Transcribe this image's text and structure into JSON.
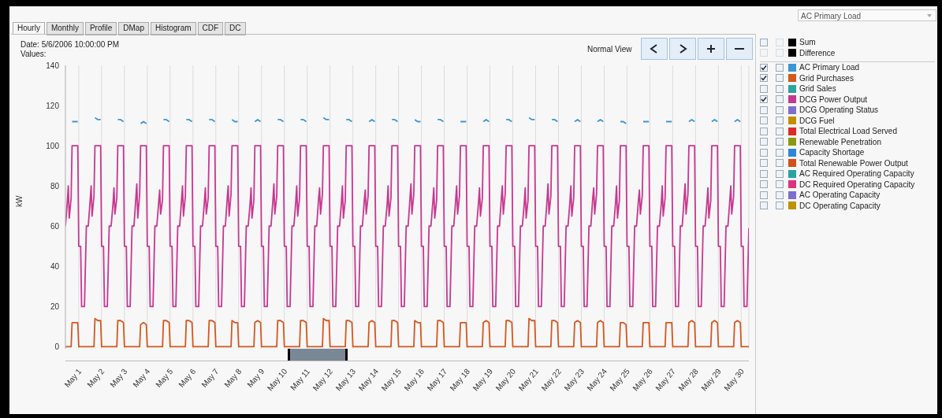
{
  "chart_data": {
    "type": "line",
    "ylabel": "kW",
    "annotations": [
      "Date:  5/6/2006 10:00:00 PM",
      "Values:",
      "Normal View",
      "AC Primary Load",
      "Hourly",
      "Monthly",
      "Profile",
      "DMap",
      "Histogram",
      "CDF",
      "DC",
      "Sum",
      "Difference",
      "Grid Sales",
      "DCG Operating Status",
      "DCG Fuel",
      "Total Electrical Load Served",
      "Renewable Penetration",
      "Capacity Shortage",
      "Total Renewable Power Output",
      "AC Required Operating Capacity",
      "DC Required Operating Capacity",
      "AC Operating Capacity",
      "DC Operating Capacity"
    ],
    "xlim": [
      "2006-04-30T10:00",
      "2006-05-30T08:00"
    ],
    "ylim": [
      -1,
      140
    ],
    "yticks": [
      0,
      20,
      40,
      60,
      80,
      100,
      120,
      140
    ],
    "xticks": [
      {
        "value": "2006-05-01",
        "label": "May 1"
      },
      {
        "value": "2006-05-02",
        "label": "May 2"
      },
      {
        "value": "2006-05-03",
        "label": "May 3"
      },
      {
        "value": "2006-05-04",
        "label": "May 4"
      },
      {
        "value": "2006-05-05",
        "label": "May 5"
      },
      {
        "value": "2006-05-06",
        "label": "May 6"
      },
      {
        "value": "2006-05-07",
        "label": "May 7"
      },
      {
        "value": "2006-05-08",
        "label": "May 8"
      },
      {
        "value": "2006-05-09",
        "label": "May 9"
      },
      {
        "value": "2006-05-10",
        "label": "May 10"
      },
      {
        "value": "2006-05-11",
        "label": "May 11"
      },
      {
        "value": "2006-05-12",
        "label": "May 12"
      },
      {
        "value": "2006-05-13",
        "label": "May 13"
      },
      {
        "value": "2006-05-14",
        "label": "May 14"
      },
      {
        "value": "2006-05-15",
        "label": "May 15"
      },
      {
        "value": "2006-05-16",
        "label": "May 16"
      },
      {
        "value": "2006-05-17",
        "label": "May 17"
      },
      {
        "value": "2006-05-18",
        "label": "May 18"
      },
      {
        "value": "2006-05-19",
        "label": "May 19"
      },
      {
        "value": "2006-05-20",
        "label": "May 20"
      },
      {
        "value": "2006-05-21",
        "label": "May 21"
      },
      {
        "value": "2006-05-22",
        "label": "May 22"
      },
      {
        "value": "2006-05-23",
        "label": "May 23"
      },
      {
        "value": "2006-05-24",
        "label": "May 24"
      },
      {
        "value": "2006-05-25",
        "label": "May 25"
      },
      {
        "value": "2006-05-26",
        "label": "May 26"
      },
      {
        "value": "2006-05-27",
        "label": "May 27"
      },
      {
        "value": "2006-05-28",
        "label": "May 28"
      },
      {
        "value": "2006-05-29",
        "label": "May 29"
      },
      {
        "value": "2006-05-30",
        "label": "May 30"
      }
    ],
    "grid": "x",
    "legend": "right",
    "marker": "none",
    "line_style": "solid",
    "x": [
      "2006-04-30T10:00",
      "2006-04-30T12:00",
      "2006-04-30T13:00",
      "2006-04-30T14:00",
      "2006-04-30T16:00",
      "2006-04-30T17:00",
      "2006-04-30T20:00",
      "2006-04-30T23:00",
      "2006-05-01T00:00",
      "2006-05-01T02:00",
      "2006-05-01T03:00",
      "2006-05-01T06:00",
      "2006-05-01T08:00",
      "2006-05-01T10:00",
      "2006-05-01T12:00",
      "2006-05-01T13:00",
      "2006-05-01T14:00",
      "2006-05-01T16:00",
      "2006-05-01T17:00",
      "2006-05-01T20:00",
      "2006-05-01T23:00",
      "2006-05-02T00:00",
      "2006-05-02T02:00",
      "2006-05-02T03:00",
      "2006-05-02T06:00",
      "2006-05-02T08:00",
      "2006-05-02T10:00",
      "2006-05-02T12:00",
      "2006-05-02T13:00",
      "2006-05-02T14:00",
      "2006-05-02T16:00",
      "2006-05-02T17:00",
      "2006-05-02T20:00",
      "2006-05-02T23:00",
      "2006-05-03T00:00",
      "2006-05-03T02:00",
      "2006-05-03T03:00",
      "2006-05-03T06:00",
      "2006-05-03T08:00",
      "2006-05-03T10:00",
      "2006-05-03T12:00",
      "2006-05-03T13:00",
      "2006-05-03T14:00",
      "2006-05-03T16:00",
      "2006-05-03T17:00",
      "2006-05-03T20:00",
      "2006-05-03T23:00",
      "2006-05-04T00:00",
      "2006-05-04T02:00",
      "2006-05-04T03:00",
      "2006-05-04T06:00",
      "2006-05-04T08:00",
      "2006-05-04T10:00",
      "2006-05-04T12:00",
      "2006-05-04T13:00",
      "2006-05-04T14:00",
      "2006-05-04T16:00",
      "2006-05-04T17:00",
      "2006-05-04T20:00",
      "2006-05-04T23:00",
      "2006-05-05T00:00",
      "2006-05-05T02:00",
      "2006-05-05T03:00",
      "2006-05-05T06:00",
      "2006-05-05T08:00",
      "2006-05-05T10:00",
      "2006-05-05T12:00",
      "2006-05-05T13:00",
      "2006-05-05T14:00",
      "2006-05-05T16:00",
      "2006-05-05T17:00",
      "2006-05-05T20:00",
      "2006-05-05T23:00",
      "2006-05-06T00:00",
      "2006-05-06T02:00",
      "2006-05-06T03:00",
      "2006-05-06T06:00",
      "2006-05-06T08:00",
      "2006-05-06T10:00",
      "2006-05-06T12:00",
      "2006-05-06T13:00",
      "2006-05-06T14:00",
      "2006-05-06T16:00",
      "2006-05-06T17:00",
      "2006-05-06T20:00",
      "2006-05-06T23:00",
      "2006-05-07T00:00",
      "2006-05-07T02:00",
      "2006-05-07T03:00",
      "2006-05-07T06:00",
      "2006-05-07T08:00",
      "2006-05-07T10:00",
      "2006-05-07T12:00",
      "2006-05-07T13:00",
      "2006-05-07T14:00",
      "2006-05-07T16:00",
      "2006-05-07T17:00",
      "2006-05-07T20:00",
      "2006-05-07T23:00",
      "2006-05-08T00:00",
      "2006-05-08T02:00",
      "2006-05-08T03:00",
      "2006-05-08T06:00",
      "2006-05-08T08:00",
      "2006-05-08T10:00",
      "2006-05-08T12:00",
      "2006-05-08T13:00",
      "2006-05-08T14:00",
      "2006-05-08T16:00",
      "2006-05-08T17:00",
      "2006-05-08T20:00",
      "2006-05-08T23:00",
      "2006-05-09T00:00",
      "2006-05-09T02:00",
      "2006-05-09T03:00",
      "2006-05-09T06:00",
      "2006-05-09T08:00",
      "2006-05-09T10:00",
      "2006-05-09T12:00",
      "2006-05-09T13:00",
      "2006-05-09T14:00",
      "2006-05-09T16:00",
      "2006-05-09T17:00",
      "2006-05-09T20:00",
      "2006-05-09T23:00",
      "2006-05-10T00:00",
      "2006-05-10T02:00",
      "2006-05-10T03:00",
      "2006-05-10T06:00",
      "2006-05-10T08:00",
      "2006-05-10T10:00",
      "2006-05-10T12:00",
      "2006-05-10T13:00",
      "2006-05-10T14:00",
      "2006-05-10T16:00",
      "2006-05-10T17:00",
      "2006-05-10T20:00",
      "2006-05-10T23:00",
      "2006-05-11T00:00",
      "2006-05-11T02:00",
      "2006-05-11T03:00",
      "2006-05-11T06:00",
      "2006-05-11T08:00",
      "2006-05-11T10:00",
      "2006-05-11T12:00",
      "2006-05-11T13:00",
      "2006-05-11T14:00",
      "2006-05-11T16:00",
      "2006-05-11T17:00",
      "2006-05-11T20:00",
      "2006-05-11T23:00",
      "2006-05-12T00:00",
      "2006-05-12T02:00",
      "2006-05-12T03:00",
      "2006-05-12T06:00",
      "2006-05-12T08:00",
      "2006-05-12T10:00",
      "2006-05-12T12:00",
      "2006-05-12T13:00",
      "2006-05-12T14:00",
      "2006-05-12T16:00",
      "2006-05-12T17:00",
      "2006-05-12T20:00",
      "2006-05-12T23:00",
      "2006-05-13T00:00",
      "2006-05-13T02:00",
      "2006-05-13T03:00",
      "2006-05-13T06:00",
      "2006-05-13T08:00",
      "2006-05-13T10:00",
      "2006-05-13T12:00",
      "2006-05-13T13:00",
      "2006-05-13T14:00",
      "2006-05-13T16:00",
      "2006-05-13T17:00",
      "2006-05-13T20:00",
      "2006-05-13T23:00",
      "2006-05-14T00:00",
      "2006-05-14T02:00",
      "2006-05-14T03:00",
      "2006-05-14T06:00",
      "2006-05-14T08:00",
      "2006-05-14T10:00",
      "2006-05-14T12:00",
      "2006-05-14T13:00",
      "2006-05-14T14:00",
      "2006-05-14T16:00",
      "2006-05-14T17:00",
      "2006-05-14T20:00",
      "2006-05-14T23:00",
      "2006-05-15T00:00",
      "2006-05-15T02:00",
      "2006-05-15T03:00",
      "2006-05-15T06:00",
      "2006-05-15T08:00",
      "2006-05-15T10:00",
      "2006-05-15T12:00",
      "2006-05-15T13:00",
      "2006-05-15T14:00",
      "2006-05-15T16:00",
      "2006-05-15T17:00",
      "2006-05-15T20:00",
      "2006-05-15T23:00",
      "2006-05-16T00:00",
      "2006-05-16T02:00",
      "2006-05-16T03:00",
      "2006-05-16T06:00",
      "2006-05-16T08:00",
      "2006-05-16T10:00",
      "2006-05-16T12:00",
      "2006-05-16T13:00",
      "2006-05-16T14:00",
      "2006-05-16T16:00",
      "2006-05-16T17:00",
      "2006-05-16T20:00",
      "2006-05-16T23:00",
      "2006-05-17T00:00",
      "2006-05-17T02:00",
      "2006-05-17T03:00",
      "2006-05-17T06:00",
      "2006-05-17T08:00",
      "2006-05-17T10:00",
      "2006-05-17T12:00",
      "2006-05-17T13:00",
      "2006-05-17T14:00",
      "2006-05-17T16:00",
      "2006-05-17T17:00",
      "2006-05-17T20:00",
      "2006-05-17T23:00",
      "2006-05-18T00:00",
      "2006-05-18T02:00",
      "2006-05-18T03:00",
      "2006-05-18T06:00",
      "2006-05-18T08:00",
      "2006-05-18T10:00",
      "2006-05-18T12:00",
      "2006-05-18T13:00",
      "2006-05-18T14:00",
      "2006-05-18T16:00",
      "2006-05-18T17:00",
      "2006-05-18T20:00",
      "2006-05-18T23:00",
      "2006-05-19T00:00",
      "2006-05-19T02:00",
      "2006-05-19T03:00",
      "2006-05-19T06:00",
      "2006-05-19T08:00",
      "2006-05-19T10:00",
      "2006-05-19T12:00",
      "2006-05-19T13:00",
      "2006-05-19T14:00",
      "2006-05-19T16:00",
      "2006-05-19T17:00",
      "2006-05-19T20:00",
      "2006-05-19T23:00",
      "2006-05-20T00:00",
      "2006-05-20T02:00",
      "2006-05-20T03:00",
      "2006-05-20T06:00",
      "2006-05-20T08:00",
      "2006-05-20T10:00",
      "2006-05-20T12:00",
      "2006-05-20T13:00",
      "2006-05-20T14:00",
      "2006-05-20T16:00",
      "2006-05-20T17:00",
      "2006-05-20T20:00",
      "2006-05-20T23:00",
      "2006-05-21T00:00",
      "2006-05-21T02:00",
      "2006-05-21T03:00",
      "2006-05-21T06:00",
      "2006-05-21T08:00",
      "2006-05-21T10:00",
      "2006-05-21T12:00",
      "2006-05-21T13:00",
      "2006-05-21T14:00",
      "2006-05-21T16:00",
      "2006-05-21T17:00",
      "2006-05-21T20:00",
      "2006-05-21T23:00",
      "2006-05-22T00:00",
      "2006-05-22T02:00",
      "2006-05-22T03:00",
      "2006-05-22T06:00",
      "2006-05-22T08:00",
      "2006-05-22T10:00",
      "2006-05-22T12:00",
      "2006-05-22T13:00",
      "2006-05-22T14:00",
      "2006-05-22T16:00",
      "2006-05-22T17:00",
      "2006-05-22T20:00",
      "2006-05-22T23:00",
      "2006-05-23T00:00",
      "2006-05-23T02:00",
      "2006-05-23T03:00",
      "2006-05-23T06:00",
      "2006-05-23T08:00",
      "2006-05-23T10:00",
      "2006-05-23T12:00",
      "2006-05-23T13:00",
      "2006-05-23T14:00",
      "2006-05-23T16:00",
      "2006-05-23T17:00",
      "2006-05-23T20:00",
      "2006-05-23T23:00",
      "2006-05-24T00:00",
      "2006-05-24T02:00",
      "2006-05-24T03:00",
      "2006-05-24T06:00",
      "2006-05-24T08:00",
      "2006-05-24T10:00",
      "2006-05-24T12:00",
      "2006-05-24T13:00",
      "2006-05-24T14:00",
      "2006-05-24T16:00",
      "2006-05-24T17:00",
      "2006-05-24T20:00",
      "2006-05-24T23:00",
      "2006-05-25T00:00",
      "2006-05-25T02:00",
      "2006-05-25T03:00",
      "2006-05-25T06:00",
      "2006-05-25T08:00",
      "2006-05-25T10:00",
      "2006-05-25T12:00",
      "2006-05-25T13:00",
      "2006-05-25T14:00",
      "2006-05-25T16:00",
      "2006-05-25T17:00",
      "2006-05-25T20:00",
      "2006-05-25T23:00",
      "2006-05-26T00:00",
      "2006-05-26T02:00",
      "2006-05-26T03:00",
      "2006-05-26T06:00",
      "2006-05-26T08:00",
      "2006-05-26T10:00",
      "2006-05-26T12:00",
      "2006-05-26T13:00",
      "2006-05-26T14:00",
      "2006-05-26T16:00",
      "2006-05-26T17:00",
      "2006-05-26T20:00",
      "2006-05-26T23:00",
      "2006-05-27T00:00",
      "2006-05-27T02:00",
      "2006-05-27T03:00",
      "2006-05-27T06:00",
      "2006-05-27T08:00",
      "2006-05-27T10:00",
      "2006-05-27T12:00",
      "2006-05-27T13:00",
      "2006-05-27T14:00",
      "2006-05-27T16:00",
      "2006-05-27T17:00",
      "2006-05-27T20:00",
      "2006-05-27T23:00",
      "2006-05-28T00:00",
      "2006-05-28T02:00",
      "2006-05-28T03:00",
      "2006-05-28T06:00",
      "2006-05-28T08:00",
      "2006-05-28T10:00",
      "2006-05-28T12:00",
      "2006-05-28T13:00",
      "2006-05-28T14:00",
      "2006-05-28T16:00",
      "2006-05-28T17:00",
      "2006-05-28T20:00",
      "2006-05-28T23:00",
      "2006-05-29T00:00",
      "2006-05-29T02:00",
      "2006-05-29T03:00",
      "2006-05-29T06:00",
      "2006-05-29T08:00",
      "2006-05-29T10:00",
      "2006-05-29T12:00",
      "2006-05-29T13:00",
      "2006-05-29T14:00",
      "2006-05-29T16:00",
      "2006-05-29T17:00",
      "2006-05-29T20:00",
      "2006-05-29T23:00",
      "2006-05-30T00:00",
      "2006-05-30T02:00",
      "2006-05-30T03:00",
      "2006-05-30T06:00",
      "2006-05-30T08:00"
    ],
    "series": [
      {
        "name": "AC Primary Load",
        "color": "#3d95d6",
        "values": [
          null,
          null,
          null,
          null,
          null,
          112,
          112,
          112,
          null,
          null,
          null,
          null,
          null,
          null,
          null,
          null,
          null,
          null,
          114,
          113,
          113,
          null,
          null,
          null,
          null,
          null,
          null,
          null,
          null,
          null,
          null,
          113,
          113,
          112,
          null,
          null,
          null,
          null,
          null,
          null,
          null,
          null,
          null,
          null,
          111,
          112,
          111,
          null,
          null,
          null,
          null,
          null,
          null,
          null,
          null,
          null,
          null,
          113,
          113,
          112,
          null,
          null,
          null,
          null,
          null,
          null,
          null,
          null,
          null,
          null,
          113,
          113,
          112,
          null,
          null,
          null,
          null,
          null,
          null,
          null,
          null,
          null,
          null,
          113,
          113,
          112,
          null,
          null,
          null,
          null,
          null,
          null,
          null,
          null,
          null,
          null,
          113,
          112,
          112,
          null,
          null,
          null,
          null,
          null,
          null,
          null,
          null,
          null,
          null,
          112,
          113,
          112,
          null,
          null,
          null,
          null,
          null,
          null,
          null,
          null,
          null,
          null,
          113,
          113,
          112,
          null,
          null,
          null,
          null,
          null,
          null,
          null,
          null,
          null,
          null,
          113,
          113,
          112,
          null,
          null,
          null,
          null,
          null,
          null,
          null,
          null,
          null,
          null,
          114,
          113,
          113,
          null,
          null,
          null,
          null,
          null,
          null,
          null,
          null,
          null,
          null,
          113,
          113,
          112,
          null,
          null,
          null,
          null,
          null,
          null,
          null,
          null,
          null,
          null,
          112,
          113,
          112,
          null,
          null,
          null,
          null,
          null,
          null,
          null,
          null,
          null,
          null,
          113,
          113,
          112,
          null,
          null,
          null,
          null,
          null,
          null,
          null,
          null,
          null,
          null,
          113,
          112,
          112,
          null,
          null,
          null,
          null,
          null,
          null,
          null,
          null,
          null,
          null,
          113,
          113,
          112,
          null,
          null,
          null,
          null,
          null,
          null,
          null,
          null,
          null,
          null,
          112,
          112,
          112,
          null,
          null,
          null,
          null,
          null,
          null,
          null,
          null,
          null,
          null,
          112,
          113,
          112,
          null,
          null,
          null,
          null,
          null,
          null,
          null,
          null,
          null,
          null,
          113,
          113,
          112,
          null,
          null,
          null,
          null,
          null,
          null,
          null,
          null,
          null,
          null,
          114,
          113,
          113,
          null,
          null,
          null,
          null,
          null,
          null,
          null,
          null,
          null,
          null,
          113,
          113,
          112,
          null,
          null,
          null,
          null,
          null,
          null,
          null,
          null,
          null,
          null,
          112,
          113,
          112,
          null,
          null,
          null,
          null,
          null,
          null,
          null,
          null,
          null,
          null,
          112,
          113,
          112,
          null,
          null,
          null,
          null,
          null,
          null,
          null,
          null,
          null,
          null,
          112,
          112,
          111,
          null,
          null,
          null,
          null,
          null,
          null,
          null,
          null,
          null,
          null,
          112,
          112,
          112,
          null,
          null,
          null,
          null,
          null,
          null,
          null,
          null,
          null,
          null,
          112,
          112,
          112,
          null,
          null,
          null,
          null,
          null,
          null,
          null,
          null,
          null,
          null,
          112,
          113,
          112,
          null,
          null,
          null,
          null,
          null,
          null,
          null,
          null,
          null,
          null,
          112,
          113,
          112,
          null,
          null,
          null,
          null,
          null,
          null,
          null,
          null,
          null,
          null,
          112,
          113,
          112,
          null,
          null,
          null,
          null,
          null
        ]
      },
      {
        "name": "Grid Purchases",
        "color": "#d4581e",
        "values": [
          0,
          0,
          0,
          0,
          0,
          12,
          12,
          12,
          0,
          0,
          0,
          0,
          0,
          0,
          0,
          0,
          0,
          0,
          14,
          13,
          13,
          0,
          0,
          0,
          0,
          0,
          0,
          0,
          0,
          0,
          0,
          13,
          13,
          12,
          0,
          0,
          0,
          0,
          0,
          0,
          0,
          0,
          0,
          0,
          11,
          12,
          11,
          0,
          0,
          0,
          0,
          0,
          0,
          0,
          0,
          0,
          0,
          13,
          13,
          12,
          0,
          0,
          0,
          0,
          0,
          0,
          0,
          0,
          0,
          0,
          13,
          13,
          12,
          0,
          0,
          0,
          0,
          0,
          0,
          0,
          0,
          0,
          0,
          13,
          13,
          12,
          0,
          0,
          0,
          0,
          0,
          0,
          0,
          0,
          0,
          0,
          13,
          12,
          12,
          0,
          0,
          0,
          0,
          0,
          0,
          0,
          0,
          0,
          0,
          12,
          13,
          12,
          0,
          0,
          0,
          0,
          0,
          0,
          0,
          0,
          0,
          0,
          13,
          13,
          12,
          0,
          0,
          0,
          0,
          0,
          0,
          0,
          0,
          0,
          0,
          13,
          13,
          12,
          0,
          0,
          0,
          0,
          0,
          0,
          0,
          0,
          0,
          0,
          14,
          13,
          13,
          0,
          0,
          0,
          0,
          0,
          0,
          0,
          0,
          0,
          0,
          13,
          13,
          12,
          0,
          0,
          0,
          0,
          0,
          0,
          0,
          0,
          0,
          0,
          12,
          13,
          12,
          0,
          0,
          0,
          0,
          0,
          0,
          0,
          0,
          0,
          0,
          13,
          13,
          12,
          0,
          0,
          0,
          0,
          0,
          0,
          0,
          0,
          0,
          0,
          13,
          12,
          12,
          0,
          0,
          0,
          0,
          0,
          0,
          0,
          0,
          0,
          0,
          13,
          13,
          12,
          0,
          0,
          0,
          0,
          0,
          0,
          0,
          0,
          0,
          0,
          12,
          12,
          12,
          0,
          0,
          0,
          0,
          0,
          0,
          0,
          0,
          0,
          0,
          12,
          13,
          12,
          0,
          0,
          0,
          0,
          0,
          0,
          0,
          0,
          0,
          0,
          13,
          13,
          12,
          0,
          0,
          0,
          0,
          0,
          0,
          0,
          0,
          0,
          0,
          14,
          13,
          13,
          0,
          0,
          0,
          0,
          0,
          0,
          0,
          0,
          0,
          0,
          13,
          13,
          12,
          0,
          0,
          0,
          0,
          0,
          0,
          0,
          0,
          0,
          0,
          12,
          13,
          12,
          0,
          0,
          0,
          0,
          0,
          0,
          0,
          0,
          0,
          0,
          12,
          13,
          12,
          0,
          0,
          0,
          0,
          0,
          0,
          0,
          0,
          0,
          0,
          12,
          12,
          11,
          0,
          0,
          0,
          0,
          0,
          0,
          0,
          0,
          0,
          0,
          12,
          12,
          12,
          0,
          0,
          0,
          0,
          0,
          0,
          0,
          0,
          0,
          0,
          12,
          12,
          12,
          0,
          0,
          0,
          0,
          0,
          0,
          0,
          0,
          0,
          0,
          12,
          13,
          12,
          0,
          0,
          0,
          0,
          0,
          0,
          0,
          0,
          0,
          0,
          12,
          13,
          12,
          0,
          0,
          0,
          0,
          0,
          0,
          0,
          0,
          0,
          0,
          12,
          13,
          12,
          0,
          0,
          0,
          0,
          0
        ]
      },
      {
        "name": "DCG Power Output",
        "color": "#c8378f",
        "values": [
          60,
          72,
          80,
          64,
          74,
          100,
          100,
          100,
          50,
          50,
          20,
          20,
          60,
          60,
          73,
          80,
          65,
          75,
          100,
          100,
          100,
          50,
          50,
          20,
          20,
          60,
          60,
          71,
          79,
          66,
          74,
          100,
          100,
          100,
          50,
          50,
          20,
          20,
          60,
          60,
          74,
          81,
          64,
          76,
          100,
          100,
          100,
          50,
          50,
          20,
          20,
          60,
          60,
          72,
          78,
          66,
          73,
          100,
          100,
          100,
          50,
          50,
          20,
          20,
          60,
          60,
          73,
          80,
          65,
          75,
          100,
          100,
          100,
          50,
          50,
          20,
          20,
          60,
          60,
          72,
          79,
          66,
          74,
          100,
          100,
          100,
          50,
          50,
          20,
          20,
          60,
          60,
          74,
          80,
          65,
          76,
          100,
          100,
          100,
          50,
          50,
          20,
          20,
          60,
          60,
          71,
          79,
          64,
          73,
          100,
          100,
          100,
          50,
          50,
          20,
          20,
          60,
          60,
          73,
          81,
          66,
          75,
          100,
          100,
          100,
          50,
          50,
          20,
          20,
          60,
          60,
          72,
          80,
          65,
          74,
          100,
          100,
          100,
          50,
          50,
          20,
          20,
          60,
          60,
          74,
          79,
          66,
          76,
          100,
          100,
          100,
          50,
          50,
          20,
          20,
          60,
          60,
          72,
          80,
          64,
          73,
          100,
          100,
          100,
          50,
          50,
          20,
          20,
          60,
          60,
          73,
          78,
          66,
          75,
          100,
          100,
          100,
          50,
          50,
          20,
          20,
          60,
          60,
          71,
          80,
          65,
          74,
          100,
          100,
          100,
          50,
          50,
          20,
          20,
          60,
          60,
          74,
          81,
          66,
          76,
          100,
          100,
          100,
          50,
          50,
          20,
          20,
          60,
          60,
          72,
          79,
          64,
          73,
          100,
          100,
          100,
          50,
          50,
          20,
          20,
          60,
          60,
          73,
          80,
          66,
          75,
          100,
          100,
          100,
          50,
          50,
          20,
          20,
          60,
          60,
          72,
          79,
          65,
          74,
          100,
          100,
          100,
          50,
          50,
          20,
          20,
          60,
          60,
          74,
          80,
          66,
          76,
          100,
          100,
          100,
          50,
          50,
          20,
          20,
          60,
          60,
          71,
          79,
          64,
          73,
          100,
          100,
          100,
          50,
          50,
          20,
          20,
          60,
          60,
          73,
          81,
          66,
          75,
          100,
          100,
          100,
          50,
          50,
          20,
          20,
          60,
          60,
          72,
          80,
          65,
          74,
          100,
          100,
          100,
          50,
          50,
          20,
          20,
          60,
          60,
          74,
          79,
          66,
          76,
          100,
          100,
          100,
          50,
          50,
          20,
          20,
          60,
          60,
          72,
          80,
          64,
          73,
          100,
          100,
          100,
          50,
          50,
          20,
          20,
          60,
          60,
          73,
          78,
          66,
          75,
          100,
          100,
          100,
          50,
          50,
          20,
          20,
          60,
          60,
          71,
          80,
          65,
          74,
          100,
          100,
          100,
          50,
          50,
          20,
          20,
          60,
          60,
          74,
          81,
          66,
          76,
          100,
          100,
          100,
          50,
          50,
          20,
          20,
          60,
          60,
          72,
          79,
          64,
          73,
          100,
          100,
          100,
          50,
          50,
          20,
          20,
          60,
          60,
          73,
          80,
          66,
          75,
          100,
          100,
          100,
          50,
          50,
          20,
          20,
          59
        ]
      }
    ]
  }
}
